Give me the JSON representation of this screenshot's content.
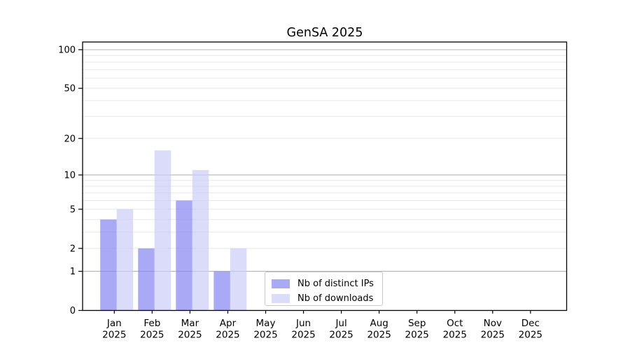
{
  "window": {
    "title": "GenSA 2025"
  },
  "chart_data": {
    "type": "bar",
    "title": "GenSA 2025",
    "xlabel": "",
    "ylabel": "",
    "yscale": "log1p",
    "ylim": [
      0,
      114
    ],
    "grid": true,
    "legend_position": "lower center",
    "months": [
      "Jan",
      "Feb",
      "Mar",
      "Apr",
      "May",
      "Jun",
      "Jul",
      "Aug",
      "Sep",
      "Oct",
      "Nov",
      "Dec"
    ],
    "year": "2025",
    "categories": [
      "Jan 2025",
      "Feb 2025",
      "Mar 2025",
      "Apr 2025",
      "May 2025",
      "Jun 2025",
      "Jul 2025",
      "Aug 2025",
      "Sep 2025",
      "Oct 2025",
      "Nov 2025",
      "Dec 2025"
    ],
    "series": [
      {
        "name": "Nb of distinct IPs",
        "color": "#8484f1",
        "opacity": 0.7,
        "values": [
          4,
          2,
          6,
          1,
          0,
          0,
          0,
          0,
          0,
          0,
          0,
          0
        ]
      },
      {
        "name": "Nb of downloads",
        "color": "#ccccf8",
        "opacity": 0.7,
        "values": [
          5,
          16,
          11,
          2,
          0,
          0,
          0,
          0,
          0,
          0,
          0,
          0
        ]
      }
    ],
    "yticks": [
      0,
      1,
      2,
      5,
      10,
      20,
      50,
      100
    ],
    "major_gridlines": [
      1,
      10,
      100
    ],
    "minor_gridlines": [
      2,
      3,
      4,
      5,
      6,
      7,
      8,
      9,
      20,
      30,
      40,
      50,
      60,
      70,
      80,
      90
    ],
    "colors": {
      "major_grid": "#b4b4b4",
      "minor_grid": "#e8e8e8",
      "axis": "#000000",
      "text": "#000000"
    }
  }
}
